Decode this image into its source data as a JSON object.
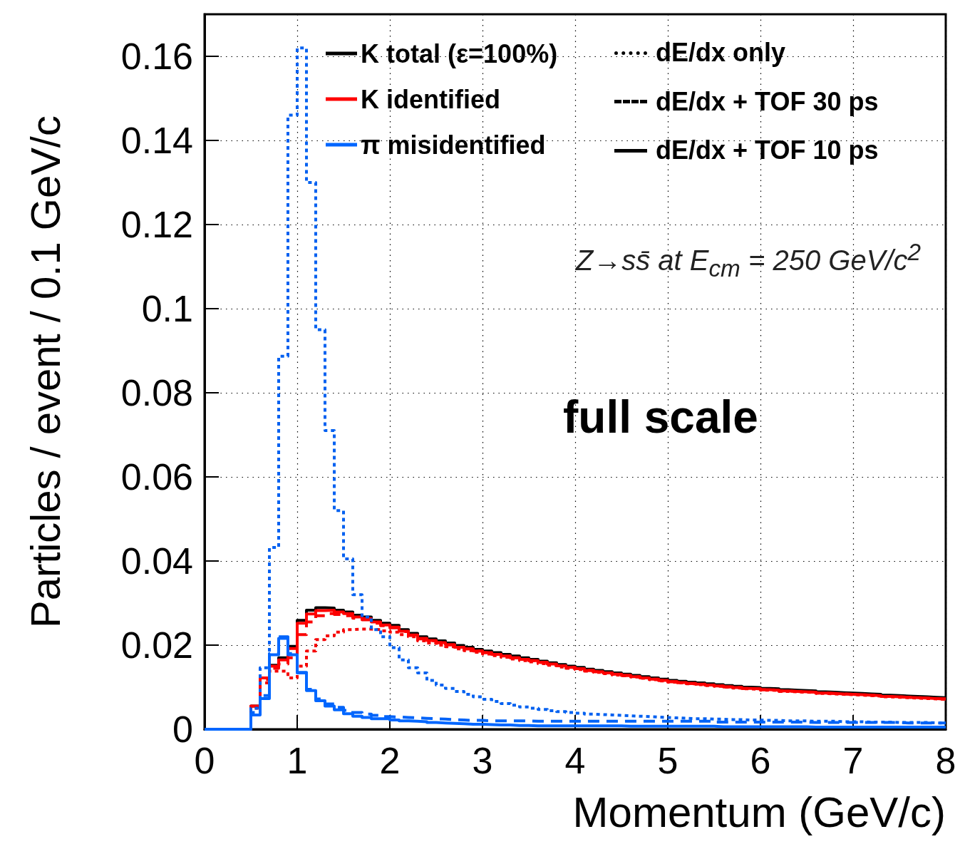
{
  "chart_data": {
    "type": "histogram",
    "xlabel": "Momentum (GeV/c)",
    "ylabel": "Particles / event / 0.1 GeV/c",
    "bins": [
      0,
      0.1,
      0.2,
      0.3,
      0.4,
      0.5,
      0.6,
      0.7,
      0.8,
      0.9,
      1,
      1.1,
      1.2,
      1.3,
      1.4,
      1.5,
      1.6,
      1.7,
      1.8,
      1.9,
      2,
      2.1,
      2.2,
      2.3,
      2.4,
      2.5,
      2.6,
      2.7,
      2.8,
      2.9,
      3,
      3.1,
      3.2,
      3.3,
      3.4,
      3.5,
      3.6,
      3.7,
      3.8,
      3.9,
      4,
      4.1,
      4.2,
      4.3,
      4.4,
      4.5,
      4.6,
      4.7,
      4.8,
      4.9,
      5,
      5.1,
      5.2,
      5.3,
      5.4,
      5.5,
      5.6,
      5.7,
      5.8,
      5.9,
      6,
      6.1,
      6.2,
      6.3,
      6.4,
      6.5,
      6.6,
      6.7,
      6.8,
      6.9,
      7,
      7.1,
      7.2,
      7.3,
      7.4,
      7.5,
      7.6,
      7.7,
      7.8,
      7.9,
      8
    ],
    "series": [
      {
        "name": "K total (ε=100%)",
        "color": "#000000",
        "line_style": "solid",
        "values": [
          0,
          0,
          0,
          0,
          0,
          0.0055,
          0.0122,
          0.0152,
          0.017,
          0.0197,
          0.0259,
          0.0283,
          0.0289,
          0.0288,
          0.0283,
          0.0279,
          0.0271,
          0.0267,
          0.0259,
          0.0252,
          0.0247,
          0.0237,
          0.0228,
          0.022,
          0.0215,
          0.021,
          0.0205,
          0.0199,
          0.0195,
          0.019,
          0.0186,
          0.0182,
          0.0178,
          0.0174,
          0.017,
          0.0166,
          0.0162,
          0.0158,
          0.0154,
          0.015,
          0.0147,
          0.0143,
          0.014,
          0.0137,
          0.0134,
          0.0131,
          0.0128,
          0.0125,
          0.0122,
          0.0119,
          0.0116,
          0.0114,
          0.0112,
          0.011,
          0.0108,
          0.0106,
          0.0104,
          0.0102,
          0.01,
          0.0099,
          0.0097,
          0.0096,
          0.0094,
          0.0093,
          0.0092,
          0.0091,
          0.0089,
          0.0088,
          0.0087,
          0.0086,
          0.0085,
          0.0084,
          0.0083,
          0.0081,
          0.008,
          0.0079,
          0.0078,
          0.0077,
          0.0076,
          0.0075
        ]
      },
      {
        "color": "#f50000",
        "line_style": "dotted",
        "values": [
          0,
          0,
          0,
          0,
          0,
          0.005,
          0.011,
          0.0138,
          0.0138,
          0.0122,
          0.015,
          0.0186,
          0.0213,
          0.0222,
          0.0231,
          0.0237,
          0.0238,
          0.0238,
          0.0237,
          0.0234,
          0.0231,
          0.0225,
          0.022,
          0.021,
          0.0205,
          0.02,
          0.0196,
          0.0191,
          0.0187,
          0.0183,
          0.0179,
          0.0175,
          0.0171,
          0.0167,
          0.0163,
          0.016,
          0.0156,
          0.0152,
          0.0148,
          0.0145,
          0.0142,
          0.0138,
          0.0135,
          0.0132,
          0.0129,
          0.0127,
          0.0124,
          0.0121,
          0.0118,
          0.0115,
          0.0112,
          0.011,
          0.0108,
          0.0106,
          0.0104,
          0.0102,
          0.01,
          0.0098,
          0.0096,
          0.0095,
          0.0093,
          0.0092,
          0.009,
          0.0089,
          0.0088,
          0.0087,
          0.0085,
          0.0084,
          0.0083,
          0.0082,
          0.0081,
          0.008,
          0.0079,
          0.0077,
          0.0076,
          0.0075,
          0.0074,
          0.0073,
          0.0072,
          0.0071
        ]
      },
      {
        "color": "#fa0000",
        "line_style": "dashed",
        "values": [
          0,
          0,
          0,
          0,
          0,
          0.0052,
          0.0118,
          0.0145,
          0.0155,
          0.017,
          0.0225,
          0.0255,
          0.027,
          0.0275,
          0.0273,
          0.027,
          0.0264,
          0.026,
          0.0252,
          0.0246,
          0.0241,
          0.0232,
          0.0223,
          0.0215,
          0.021,
          0.0206,
          0.0201,
          0.0195,
          0.0191,
          0.0186,
          0.0182,
          0.0178,
          0.0174,
          0.017,
          0.0166,
          0.0163,
          0.0159,
          0.0155,
          0.0151,
          0.0147,
          0.0144,
          0.014,
          0.0137,
          0.0134,
          0.0131,
          0.0128,
          0.0125,
          0.0122,
          0.0119,
          0.0116,
          0.0113,
          0.0111,
          0.0109,
          0.0107,
          0.0105,
          0.0103,
          0.0101,
          0.0099,
          0.0097,
          0.0096,
          0.0094,
          0.0093,
          0.0091,
          0.009,
          0.0089,
          0.0088,
          0.0086,
          0.0085,
          0.0084,
          0.0083,
          0.0082,
          0.0081,
          0.008,
          0.0078,
          0.0077,
          0.0076,
          0.0075,
          0.0074,
          0.0073,
          0.0072
        ]
      },
      {
        "name": "K identified",
        "color": "#ff0000",
        "line_style": "solid",
        "values": [
          0,
          0,
          0,
          0,
          0,
          0.0055,
          0.0122,
          0.015,
          0.0165,
          0.0192,
          0.0252,
          0.0274,
          0.0282,
          0.0283,
          0.0279,
          0.0275,
          0.0267,
          0.0263,
          0.0255,
          0.0248,
          0.0243,
          0.0233,
          0.0224,
          0.0216,
          0.0211,
          0.0206,
          0.0201,
          0.0195,
          0.0191,
          0.0186,
          0.0182,
          0.0178,
          0.0174,
          0.017,
          0.0166,
          0.0163,
          0.0159,
          0.0155,
          0.0151,
          0.0147,
          0.0144,
          0.014,
          0.0137,
          0.0134,
          0.0131,
          0.0128,
          0.0125,
          0.0122,
          0.0119,
          0.0116,
          0.0113,
          0.0111,
          0.0109,
          0.0107,
          0.0105,
          0.0103,
          0.0101,
          0.0099,
          0.0097,
          0.0096,
          0.0094,
          0.0093,
          0.0091,
          0.009,
          0.0089,
          0.0088,
          0.0086,
          0.0085,
          0.0084,
          0.0083,
          0.0082,
          0.0081,
          0.008,
          0.0078,
          0.0077,
          0.0076,
          0.0075,
          0.0074,
          0.0073,
          0.0072
        ]
      },
      {
        "color": "#0060f0",
        "line_style": "dotted",
        "values": [
          0,
          0,
          0,
          0,
          0,
          0.005,
          0.0146,
          0.0432,
          0.0887,
          0.146,
          0.162,
          0.13,
          0.095,
          0.071,
          0.052,
          0.0405,
          0.032,
          0.0267,
          0.0237,
          0.022,
          0.0194,
          0.0165,
          0.0146,
          0.0134,
          0.0116,
          0.0105,
          0.0097,
          0.009,
          0.0083,
          0.0077,
          0.0071,
          0.0066,
          0.0061,
          0.0057,
          0.0053,
          0.005,
          0.0047,
          0.0044,
          0.0042,
          0.004,
          0.0038,
          0.0036,
          0.0035,
          0.0034,
          0.0033,
          0.0032,
          0.0031,
          0.003,
          0.0029,
          0.0028,
          0.0027,
          0.0026,
          0.0025,
          0.0025,
          0.0024,
          0.0024,
          0.0023,
          0.0023,
          0.0022,
          0.0022,
          0.0021,
          0.0021,
          0.002,
          0.002,
          0.002,
          0.0019,
          0.0019,
          0.0019,
          0.0018,
          0.0018,
          0.0018,
          0.0017,
          0.0017,
          0.0017,
          0.0016,
          0.0016,
          0.0016,
          0.0016,
          0.0015,
          0.0015
        ]
      },
      {
        "color": "#0063f8",
        "line_style": "dashed",
        "values": [
          0,
          0,
          0,
          0,
          0,
          0.004,
          0.008,
          0.018,
          0.022,
          0.018,
          0.0135,
          0.0095,
          0.0072,
          0.006,
          0.0052,
          0.0045,
          0.004,
          0.0036,
          0.0033,
          0.003,
          0.0029,
          0.0028,
          0.0027,
          0.0026,
          0.0025,
          0.0024,
          0.0023,
          0.0022,
          0.0021,
          0.0021,
          0.002,
          0.002,
          0.002,
          0.002,
          0.002,
          0.0019,
          0.0019,
          0.0019,
          0.0019,
          0.0019,
          0.0019,
          0.0019,
          0.0019,
          0.0019,
          0.0019,
          0.0019,
          0.0019,
          0.0019,
          0.0019,
          0.0019,
          0.0019,
          0.0019,
          0.0019,
          0.0019,
          0.0019,
          0.0017,
          0.0017,
          0.0017,
          0.0017,
          0.0017,
          0.0017,
          0.0017,
          0.0017,
          0.0017,
          0.0017,
          0.0016,
          0.0016,
          0.0016,
          0.0016,
          0.0016,
          0.0016,
          0.0016,
          0.0016,
          0.0016,
          0.0016,
          0.0015,
          0.0015,
          0.0015,
          0.0015,
          0.0015
        ]
      },
      {
        "name": "π misidentified",
        "color": "#0066ff",
        "line_style": "solid",
        "values": [
          0,
          0,
          0,
          0,
          0,
          0.0034,
          0.0073,
          0.0177,
          0.0216,
          0.0177,
          0.0134,
          0.0092,
          0.0068,
          0.0055,
          0.0046,
          0.0037,
          0.0031,
          0.0028,
          0.0025,
          0.0025,
          0.0022,
          0.002,
          0.0019,
          0.0018,
          0.0016,
          0.0015,
          0.0014,
          0.0013,
          0.0012,
          0.0012,
          0.0011,
          0.001,
          0.001,
          0.0009,
          0.0009,
          0.0008,
          0.0008,
          0.0008,
          0.0008,
          0.0008,
          0.0008,
          0.0008,
          0.0008,
          0.0008,
          0.0008,
          0.0007,
          0.0007,
          0.0007,
          0.0007,
          0.0007,
          0.0007,
          0.0007,
          0.0007,
          0.0007,
          0.0007,
          0.0006,
          0.0006,
          0.0006,
          0.0006,
          0.0006,
          0.0006,
          0.0006,
          0.0006,
          0.0006,
          0.0006,
          0.0005,
          0.0005,
          0.0005,
          0.0005,
          0.0005,
          0.0005,
          0.0005,
          0.0005,
          0.0005,
          0.0005,
          0.0005,
          0.0005,
          0.0005,
          0.0005,
          0.0005
        ]
      }
    ],
    "annotations": [
      "dE/dx only",
      "dE/dx + TOF 30 ps",
      "dE/dx + TOF 10 ps",
      "Z→ss̄ at E$_{cm}$ = 250 GeV/c$^{2}$",
      "full scale"
    ],
    "xlim": [
      0,
      8
    ],
    "xticks": [
      0,
      1,
      2,
      3,
      4,
      5,
      6,
      7,
      8
    ],
    "ylim": [
      0,
      0.17
    ],
    "yticks": [
      0,
      0.02,
      0.04,
      0.06,
      0.08,
      0.1,
      0.12,
      0.14,
      0.16
    ],
    "grid": true,
    "legend": "top left",
    "marker": "none"
  }
}
